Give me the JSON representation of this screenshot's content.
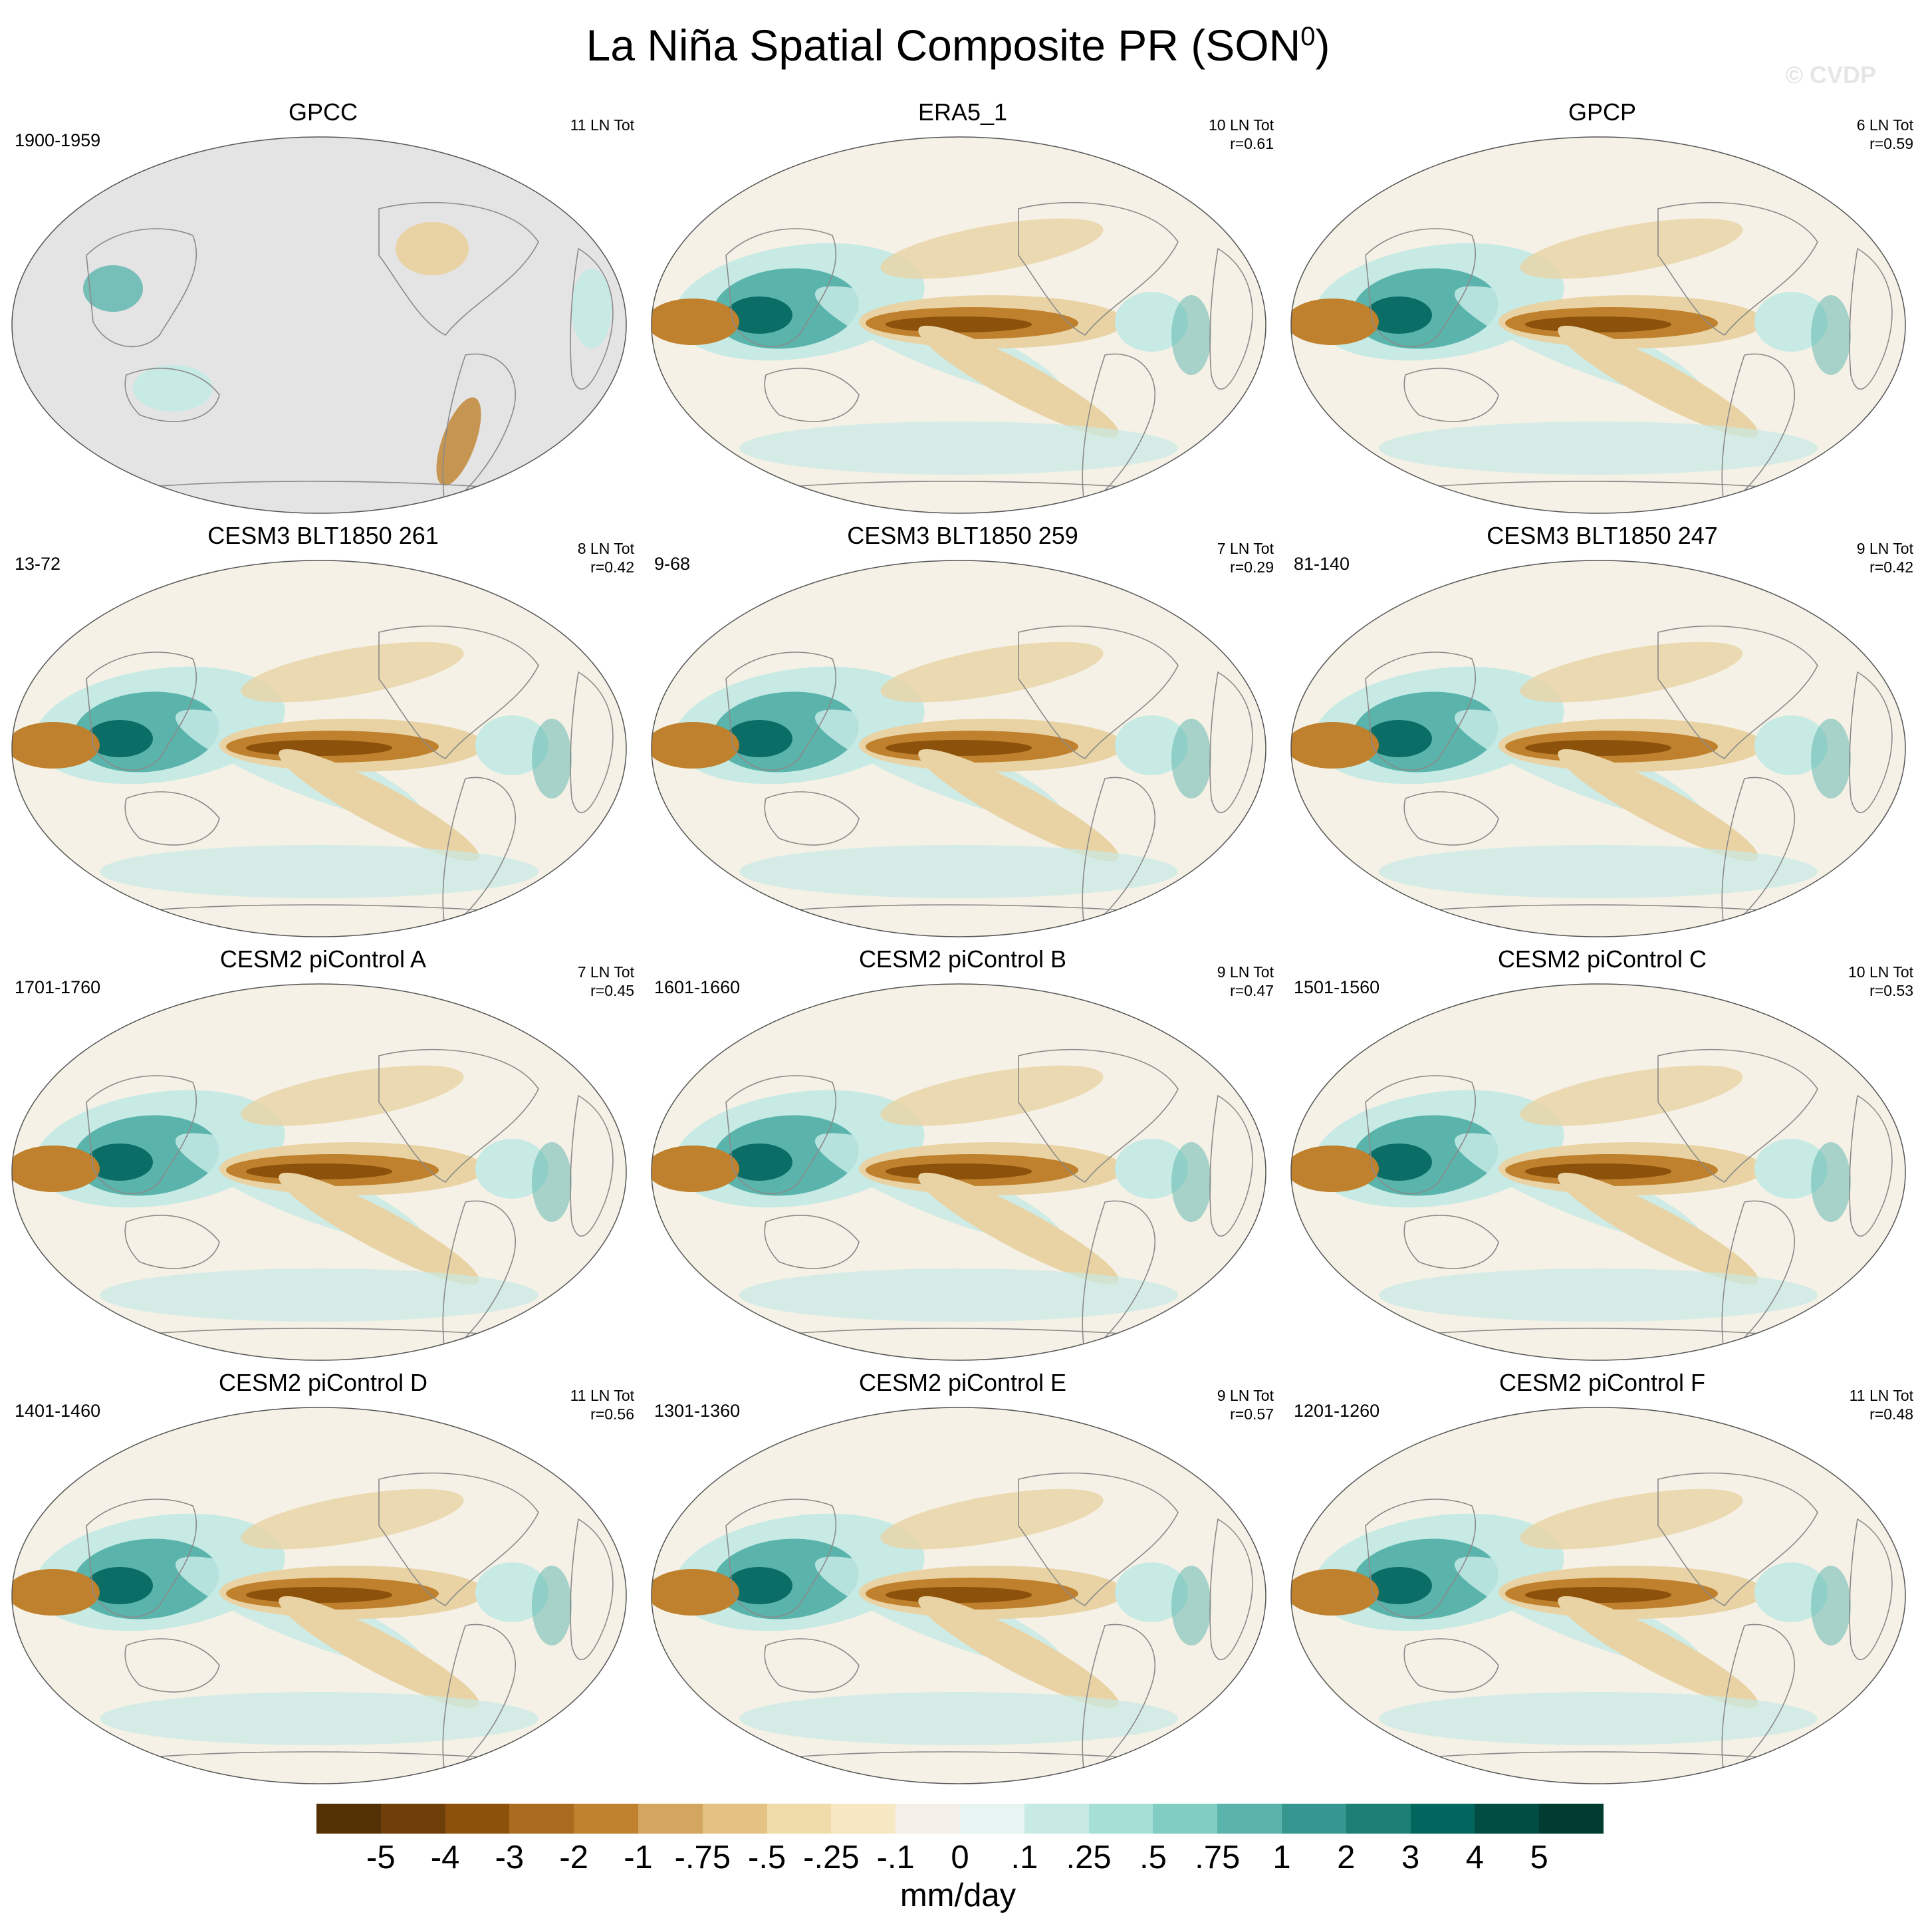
{
  "figure": {
    "title_main": "La Niña Spatial Composite PR (SON",
    "title_sup": "0",
    "title_close": ")",
    "watermark": "© CVDP"
  },
  "panels": [
    {
      "title": "GPCC",
      "period": "1900-1959",
      "count": "11 LN Tot",
      "corr": "",
      "land_only": true
    },
    {
      "title": "ERA5_1",
      "period": "",
      "count": "10 LN Tot",
      "corr": "r=0.61",
      "land_only": false
    },
    {
      "title": "GPCP",
      "period": "",
      "count": "6 LN Tot",
      "corr": "r=0.59",
      "land_only": false
    },
    {
      "title": "CESM3 BLT1850 261",
      "period": "13-72",
      "count": "8 LN Tot",
      "corr": "r=0.42",
      "land_only": false
    },
    {
      "title": "CESM3 BLT1850 259",
      "period": "9-68",
      "count": "7 LN Tot",
      "corr": "r=0.29",
      "land_only": false
    },
    {
      "title": "CESM3 BLT1850 247",
      "period": "81-140",
      "count": "9 LN Tot",
      "corr": "r=0.42",
      "land_only": false
    },
    {
      "title": "CESM2 piControl A",
      "period": "1701-1760",
      "count": "7 LN Tot",
      "corr": "r=0.45",
      "land_only": false
    },
    {
      "title": "CESM2 piControl B",
      "period": "1601-1660",
      "count": "9 LN Tot",
      "corr": "r=0.47",
      "land_only": false
    },
    {
      "title": "CESM2 piControl C",
      "period": "1501-1560",
      "count": "10 LN Tot",
      "corr": "r=0.53",
      "land_only": false
    },
    {
      "title": "CESM2 piControl D",
      "period": "1401-1460",
      "count": "11 LN Tot",
      "corr": "r=0.56",
      "land_only": false
    },
    {
      "title": "CESM2 piControl E",
      "period": "1301-1360",
      "count": "9 LN Tot",
      "corr": "r=0.57",
      "land_only": false
    },
    {
      "title": "CESM2 piControl F",
      "period": "1201-1260",
      "count": "11 LN Tot",
      "corr": "r=0.48",
      "land_only": false
    }
  ],
  "colorbar": {
    "labels": [
      "-5",
      "-4",
      "-3",
      "-2",
      "-1",
      "-.75",
      "-.5",
      "-.25",
      "-.1",
      "0",
      ".1",
      ".25",
      ".5",
      ".75",
      "1",
      "2",
      "3",
      "4",
      "5"
    ],
    "colors": [
      "#543005",
      "#6f3f0a",
      "#8c510a",
      "#a86b20",
      "#bf812d",
      "#d2a660",
      "#e3c283",
      "#f0dcaa",
      "#f6e8c3",
      "#f4f0e8",
      "#e8f4f2",
      "#c7eae5",
      "#a6dfd6",
      "#80cdc1",
      "#5ab4ac",
      "#35978f",
      "#1c7e75",
      "#01665e",
      "#014c43",
      "#003c30"
    ],
    "units": "mm/day"
  },
  "palette": {
    "dry_strong": "#8c510a",
    "dry_mid": "#bf812d",
    "dry_light": "#e9d3a4",
    "neutral": "#f5f1e6",
    "wet_light": "#c7eae5",
    "wet_mid": "#5ab4ac",
    "wet_strong": "#01665e",
    "coast": "#8a8a8a",
    "missing": "#e4e4e4"
  }
}
